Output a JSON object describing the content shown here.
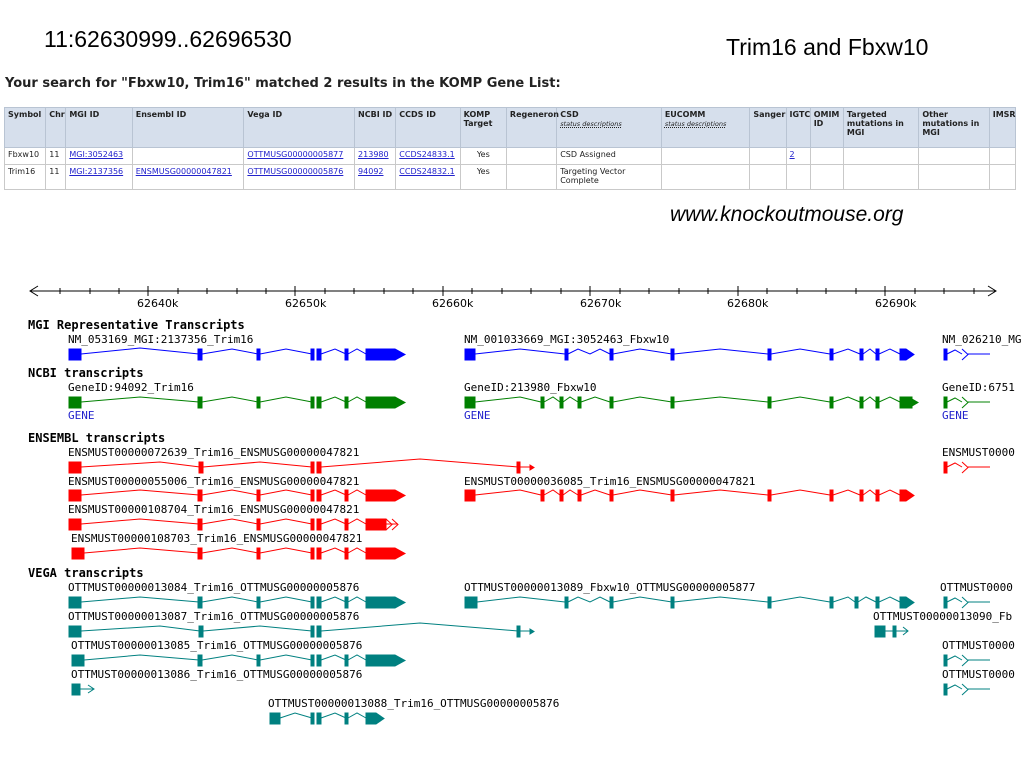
{
  "slide": {
    "title": "11:62630999..62696530",
    "subtitle": "Trim16 and Fbxw10",
    "site_url": "www.knockoutmouse.org"
  },
  "komp": {
    "heading": "Your search for \"Fbxw10, Trim16\" matched 2 results in the KOMP Gene List:",
    "columns": {
      "symbol": "Symbol",
      "chr": "Chr",
      "mgi": "MGI ID",
      "ensembl": "Ensembl ID",
      "vega": "Vega ID",
      "ncbi": "NCBI ID",
      "ccds": "CCDS ID",
      "komp": "KOMP Target",
      "regeneron": "Regeneron",
      "csd": "CSD",
      "csd_sub": "status descriptions",
      "eucomm": "EUCOMM",
      "eucomm_sub": "status descriptions",
      "sanger": "Sanger",
      "igtc": "IGTC",
      "omim": "OMIM ID",
      "targeted": "Targeted mutations in MGI",
      "other": "Other mutations in MGI",
      "imsr": "IMSR"
    },
    "rows": [
      {
        "symbol": "Fbxw10",
        "chr": "11",
        "mgi": "MGI:3052463",
        "ensembl": "",
        "vega": "OTTMUSG00000005877",
        "ncbi": "213980",
        "ccds": "CCDS24833.1",
        "komp": "Yes",
        "regeneron": "",
        "csd": "CSD Assigned",
        "eucomm": "",
        "sanger": "",
        "igtc": "2",
        "omim": "",
        "targeted": "",
        "other": "",
        "imsr": ""
      },
      {
        "symbol": "Trim16",
        "chr": "11",
        "mgi": "MGI:2137356",
        "ensembl": "ENSMUSG00000047821",
        "vega": "OTTMUSG00000005876",
        "ncbi": "94092",
        "ccds": "CCDS24832.1",
        "komp": "Yes",
        "regeneron": "",
        "csd": "Targeting Vector Complete",
        "eucomm": "",
        "sanger": "",
        "igtc": "",
        "omim": "",
        "targeted": "",
        "other": "",
        "imsr": ""
      }
    ]
  },
  "browser": {
    "ruler_ticks": [
      "62640k",
      "62650k",
      "62660k",
      "62670k",
      "62680k",
      "62690k"
    ],
    "tracks": {
      "mgi": "MGI Representative Transcripts",
      "ncbi": "NCBI transcripts",
      "ensembl": "ENSEMBL transcripts",
      "vega": "VEGA transcripts"
    },
    "gene_link": "GENE",
    "colors": {
      "mgi": "#0000ff",
      "ncbi": "#008000",
      "ensembl": "#ff0000",
      "vega": "#008080"
    },
    "labels": {
      "mgi_trim16": "NM_053169_MGI:2137356_Trim16",
      "mgi_fbxw10": "NM_001033669_MGI:3052463_Fbxw10",
      "mgi_right": "NM_026210_MG",
      "ncbi_trim16": "GeneID:94092_Trim16",
      "ncbi_fbxw10": "GeneID:213980_Fbxw10",
      "ncbi_right": "GeneID:6751",
      "ens_1": "ENSMUST00000072639_Trim16_ENSMUSG00000047821",
      "ens_right": "ENSMUST0000",
      "ens_2": "ENSMUST00000055006_Trim16_ENSMUSG00000047821",
      "ens_3": "ENSMUST00000036085_Trim16_ENSMUSG00000047821",
      "ens_4": "ENSMUST00000108704_Trim16_ENSMUSG00000047821",
      "ens_5": "ENSMUST00000108703_Trim16_ENSMUSG00000047821",
      "vega_1": "OTTMUST00000013084_Trim16_OTTMUSG00000005876",
      "vega_2": "OTTMUST00000013089_Fbxw10_OTTMUSG00000005877",
      "vega_right1": "OTTMUST0000",
      "vega_3": "OTTMUST00000013087_Trim16_OTTMUSG00000005876",
      "vega_4": "OTTMUST00000013090_Fb",
      "vega_5": "OTTMUST00000013085_Trim16_OTTMUSG00000005876",
      "vega_right2": "OTTMUST0000",
      "vega_6": "OTTMUST00000013086_Trim16_OTTMUSG00000005876",
      "vega_right3": "OTTMUST0000",
      "vega_7": "OTTMUST00000013088_Trim16_OTTMUSG00000005876"
    }
  }
}
